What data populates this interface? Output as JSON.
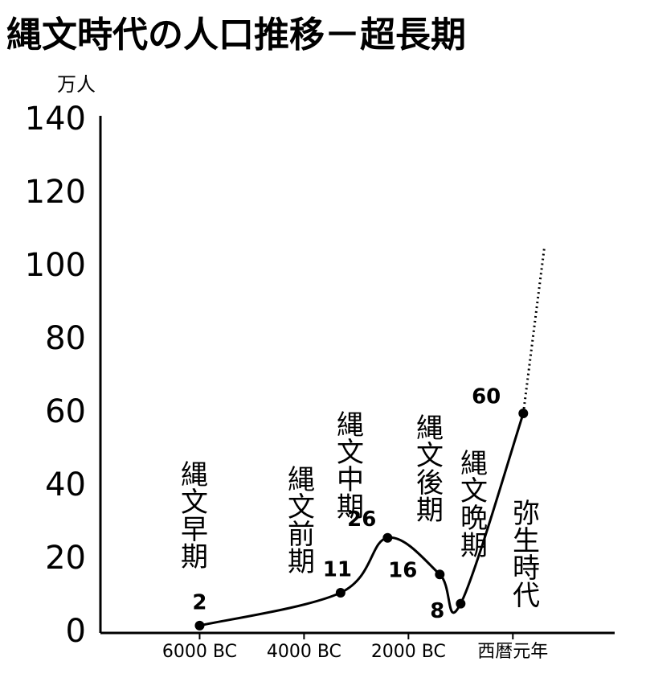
{
  "chart_data": {
    "type": "line",
    "title": "縄文時代の人口推移－超長期",
    "y_label": "万人",
    "xlim": [
      -7900,
      1950
    ],
    "xticks": [
      {
        "value": -6000,
        "label": "6000 BC"
      },
      {
        "value": -4000,
        "label": "4000 BC"
      },
      {
        "value": -2000,
        "label": "2000 BC"
      },
      {
        "value": 0,
        "label": "西暦元年"
      }
    ],
    "ylim": [
      0,
      140
    ],
    "yticks": [
      0,
      20,
      40,
      60,
      80,
      100,
      120,
      140
    ],
    "grid": false,
    "series": [
      {
        "x": [
          -6000,
          -3300,
          -2400,
          -1400,
          -1000,
          200
        ],
        "values": [
          2,
          11,
          26,
          16,
          8,
          60
        ],
        "color": "#000000",
        "style": "solid",
        "markers": true
      },
      {
        "x": [
          200,
          600
        ],
        "values": [
          60,
          105
        ],
        "color": "#000000",
        "style": "dotted",
        "markers": false
      }
    ],
    "annotations": [
      "縄文早期",
      "縄文前期",
      "縄文中期",
      "縄文後期",
      "縄文晩期",
      "弥生時代"
    ]
  }
}
